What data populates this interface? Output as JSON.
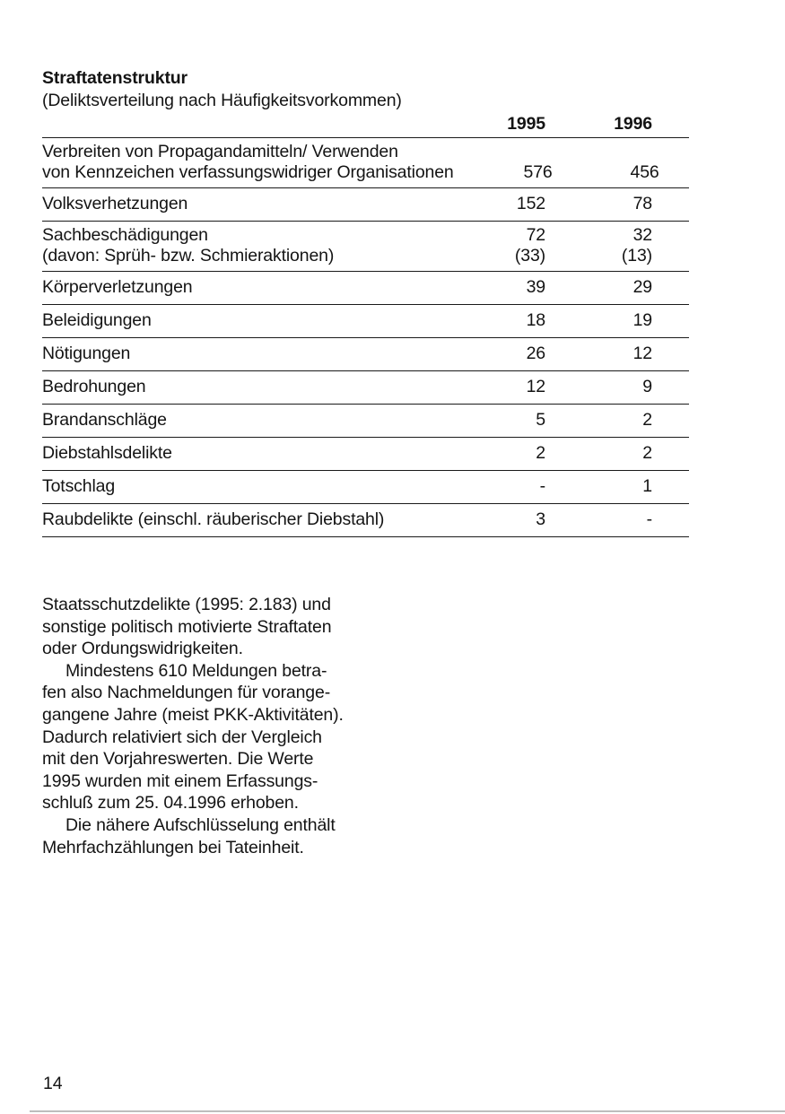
{
  "colors": {
    "ink": "#141414",
    "rule": "#1a1a1a",
    "footer_hairline": "#bdbdbd",
    "background": "#ffffff"
  },
  "table": {
    "title": "Straftatenstruktur",
    "subtitle": "(Deliktsverteilung nach Häufigkeitsvorkommen)",
    "col_headers": {
      "y1995": "1995",
      "y1996": "1996"
    },
    "rows": [
      {
        "label_line1": "Verbreiten von Propagandamitteln/ Verwenden",
        "label_line2": "von Kennzeichen verfassungswidriger Organisationen",
        "v1995": "576",
        "v1996": "456"
      },
      {
        "label": "Volksverhetzungen",
        "v1995": "152",
        "v1996": "78"
      },
      {
        "label_line1": "Sachbeschädigungen",
        "label_line2": "(davon: Sprüh- bzw. Schmieraktionen)",
        "v1995_line1": "72",
        "v1995_line2": "(33)",
        "v1996_line1": "32",
        "v1996_line2": "(13)"
      },
      {
        "label": "Körperverletzungen",
        "v1995": "39",
        "v1996": "29"
      },
      {
        "label": "Beleidigungen",
        "v1995": "18",
        "v1996": "19"
      },
      {
        "label": "Nötigungen",
        "v1995": "26",
        "v1996": "12"
      },
      {
        "label": "Bedrohungen",
        "v1995": "12",
        "v1996": "9"
      },
      {
        "label": "Brandanschläge",
        "v1995": "5",
        "v1996": "2"
      },
      {
        "label": "Diebstahlsdelikte",
        "v1995": "2",
        "v1996": "2"
      },
      {
        "label": "Totschlag",
        "v1995": "-",
        "v1996": "1"
      },
      {
        "label": "Raubdelikte (einschl. räuberischer Diebstahl)",
        "v1995": "3",
        "v1996": "-"
      }
    ]
  },
  "body": {
    "lines": [
      "Staatsschutzdelikte (1995: 2.183) und",
      "sonstige politisch motivierte Straftaten",
      "oder Ordungswidrigkeiten.",
      "Mindestens 610 Meldungen betra-",
      "fen also Nachmeldungen für vorange-",
      "gangene Jahre (meist PKK-Aktivitäten).",
      "Dadurch relativiert sich der Vergleich",
      "mit den Vorjahreswerten. Die Werte",
      "1995 wurden mit einem Erfassungs-",
      "schluß zum 25. 04.1996 erhoben.",
      "Die nähere Aufschlüsselung enthält",
      "Mehrfachzählungen bei Tateinheit."
    ]
  },
  "footer": {
    "page_number": "14"
  }
}
